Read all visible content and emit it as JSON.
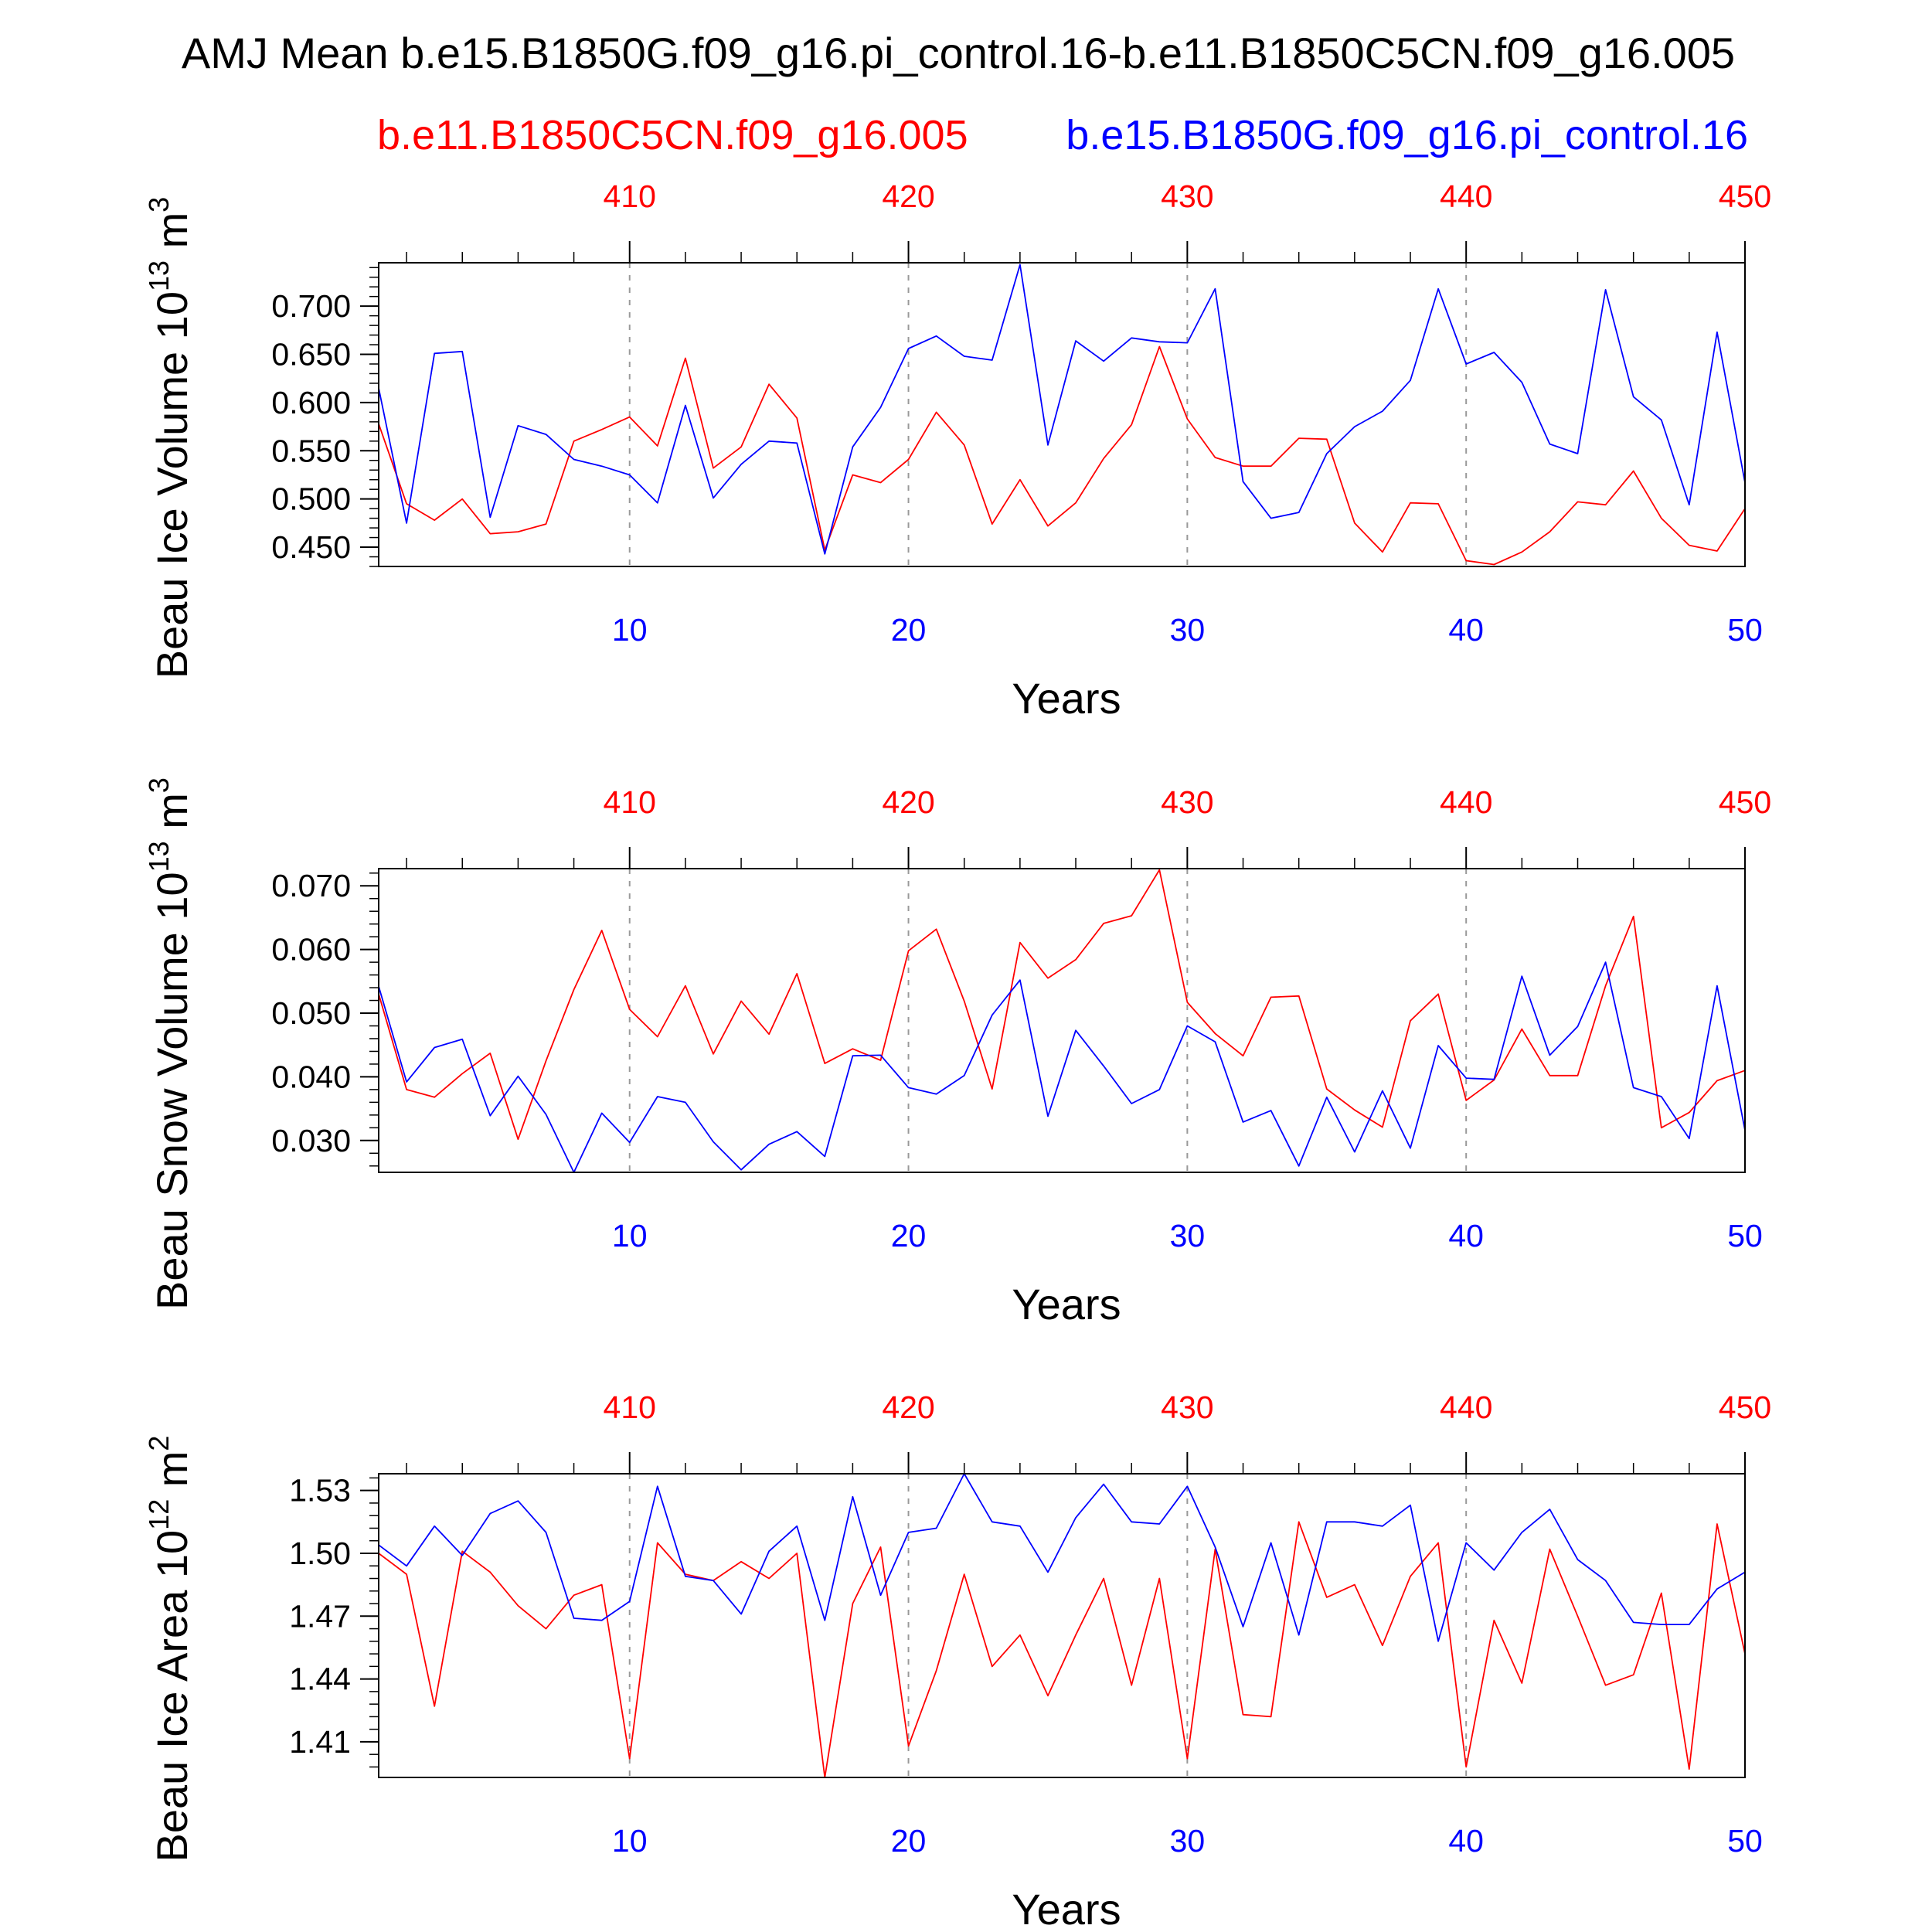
{
  "title": "AMJ Mean b.e15.B1850G.f09_g16.pi_control.16-b.e11.B1850C5CN.f09_g16.005",
  "legend": {
    "case1": {
      "label": "b.e11.B1850C5CN.f09_g16.005",
      "color": "#ff0000"
    },
    "case2": {
      "label": "b.e15.B1850G.f09_g16.pi_control.16",
      "color": "#0000ff"
    }
  },
  "colors": {
    "case1": "#ff0000",
    "case2": "#0000ff",
    "frame": "#000000",
    "gridline": "#999999"
  },
  "chart_data": [
    {
      "type": "line",
      "ylabel": "Beau Ice Volume 10",
      "ylabel_exp": "13",
      "ylabel_unit": " m",
      "ylabel_unit_exp": "3",
      "xlabel": "Years",
      "xlim": [
        1,
        50
      ],
      "ylim": [
        0.43,
        0.745
      ],
      "yticks": [
        0.45,
        0.5,
        0.55,
        0.6,
        0.65,
        0.7
      ],
      "ytick_labels": [
        "0.450",
        "0.500",
        "0.550",
        "0.600",
        "0.650",
        "0.700"
      ],
      "yminor_step": 0.01,
      "bottom_x_ticks": [
        10,
        20,
        30,
        40,
        50
      ],
      "top_x_ticks": [
        410,
        420,
        430,
        440,
        450
      ],
      "grid_x": [
        10,
        20,
        30,
        40
      ],
      "x": [
        1,
        2,
        3,
        4,
        5,
        6,
        7,
        8,
        9,
        10,
        11,
        12,
        13,
        14,
        15,
        16,
        17,
        18,
        19,
        20,
        21,
        22,
        23,
        24,
        25,
        26,
        27,
        28,
        29,
        30,
        31,
        32,
        33,
        34,
        35,
        36,
        37,
        38,
        39,
        40,
        41,
        42,
        43,
        44,
        45,
        46,
        47,
        48,
        49,
        50
      ],
      "series": [
        {
          "name": "b.e11.B1850C5CN.f09_g16.005",
          "color": "#ff0000",
          "values": [
            0.578,
            0.495,
            0.478,
            0.5,
            0.464,
            0.466,
            0.474,
            0.56,
            0.572,
            0.585,
            0.555,
            0.646,
            0.532,
            0.554,
            0.619,
            0.584,
            0.447,
            0.525,
            0.517,
            0.541,
            0.59,
            0.556,
            0.474,
            0.52,
            0.472,
            0.496,
            0.542,
            0.577,
            0.658,
            0.583,
            0.543,
            0.534,
            0.534,
            0.563,
            0.562,
            0.475,
            0.445,
            0.496,
            0.495,
            0.436,
            0.432,
            0.445,
            0.466,
            0.497,
            0.494,
            0.529,
            0.48,
            0.452,
            0.446,
            0.49
          ]
        },
        {
          "name": "b.e15.B1850G.f09_g16.pi_control.16",
          "color": "#0000ff",
          "values": [
            0.615,
            0.475,
            0.651,
            0.653,
            0.481,
            0.576,
            0.567,
            0.541,
            0.534,
            0.525,
            0.496,
            0.597,
            0.501,
            0.536,
            0.56,
            0.558,
            0.443,
            0.554,
            0.595,
            0.656,
            0.669,
            0.648,
            0.644,
            0.743,
            0.556,
            0.664,
            0.643,
            0.667,
            0.663,
            0.662,
            0.718,
            0.518,
            0.48,
            0.486,
            0.547,
            0.575,
            0.591,
            0.623,
            0.718,
            0.64,
            0.652,
            0.621,
            0.557,
            0.547,
            0.717,
            0.606,
            0.582,
            0.494,
            0.673,
            0.517
          ]
        }
      ]
    },
    {
      "type": "line",
      "ylabel": "Beau Snow Volume 10",
      "ylabel_exp": "13",
      "ylabel_unit": " m",
      "ylabel_unit_exp": "3",
      "xlabel": "Years",
      "xlim": [
        1,
        50
      ],
      "ylim": [
        0.025,
        0.0727
      ],
      "yticks": [
        0.03,
        0.04,
        0.05,
        0.06,
        0.07
      ],
      "ytick_labels": [
        "0.030",
        "0.040",
        "0.050",
        "0.060",
        "0.070"
      ],
      "yminor_step": 0.002,
      "bottom_x_ticks": [
        10,
        20,
        30,
        40,
        50
      ],
      "top_x_ticks": [
        410,
        420,
        430,
        440,
        450
      ],
      "grid_x": [
        10,
        20,
        30,
        40
      ],
      "x": [
        1,
        2,
        3,
        4,
        5,
        6,
        7,
        8,
        9,
        10,
        11,
        12,
        13,
        14,
        15,
        16,
        17,
        18,
        19,
        20,
        21,
        22,
        23,
        24,
        25,
        26,
        27,
        28,
        29,
        30,
        31,
        32,
        33,
        34,
        35,
        36,
        37,
        38,
        39,
        40,
        41,
        42,
        43,
        44,
        45,
        46,
        47,
        48,
        49,
        50
      ],
      "series": [
        {
          "name": "b.e11.B1850C5CN.f09_g16.005",
          "color": "#ff0000",
          "values": [
            0.053,
            0.038,
            0.0368,
            0.0405,
            0.0437,
            0.0302,
            0.0425,
            0.0537,
            0.063,
            0.0506,
            0.0463,
            0.0543,
            0.0436,
            0.0519,
            0.0467,
            0.0562,
            0.0421,
            0.0444,
            0.0426,
            0.0598,
            0.0632,
            0.0519,
            0.0381,
            0.0611,
            0.0555,
            0.0584,
            0.0641,
            0.0653,
            0.0725,
            0.0517,
            0.0468,
            0.0433,
            0.0525,
            0.0527,
            0.0381,
            0.0348,
            0.0321,
            0.0488,
            0.053,
            0.0363,
            0.0395,
            0.0475,
            0.0402,
            0.0402,
            0.0543,
            0.0652,
            0.032,
            0.0344,
            0.0394,
            0.041
          ]
        },
        {
          "name": "b.e15.B1850G.f09_g16.pi_control.16",
          "color": "#0000ff",
          "values": [
            0.0542,
            0.0392,
            0.0446,
            0.0459,
            0.0339,
            0.0401,
            0.0341,
            0.025,
            0.0343,
            0.0297,
            0.0369,
            0.036,
            0.0298,
            0.0254,
            0.0294,
            0.0314,
            0.0275,
            0.0433,
            0.0434,
            0.0383,
            0.0373,
            0.0402,
            0.0497,
            0.0552,
            0.0338,
            0.0473,
            0.0417,
            0.0358,
            0.038,
            0.048,
            0.0455,
            0.0329,
            0.0347,
            0.026,
            0.0368,
            0.0282,
            0.0378,
            0.0288,
            0.0449,
            0.0398,
            0.0396,
            0.0558,
            0.0434,
            0.0479,
            0.058,
            0.0383,
            0.0369,
            0.0303,
            0.0543,
            0.0316
          ]
        }
      ]
    },
    {
      "type": "line",
      "ylabel": "Beau Ice Area 10",
      "ylabel_exp": "12",
      "ylabel_unit": " m",
      "ylabel_unit_exp": "2",
      "xlabel": "Years",
      "xlim": [
        1,
        50
      ],
      "ylim": [
        1.393,
        1.538
      ],
      "yticks": [
        1.41,
        1.44,
        1.47,
        1.5,
        1.53
      ],
      "ytick_labels": [
        "1.41",
        "1.44",
        "1.47",
        "1.50",
        "1.53"
      ],
      "yminor_step": 0.006,
      "bottom_x_ticks": [
        10,
        20,
        30,
        40,
        50
      ],
      "top_x_ticks": [
        410,
        420,
        430,
        440,
        450
      ],
      "grid_x": [
        10,
        20,
        30,
        40
      ],
      "x": [
        1,
        2,
        3,
        4,
        5,
        6,
        7,
        8,
        9,
        10,
        11,
        12,
        13,
        14,
        15,
        16,
        17,
        18,
        19,
        20,
        21,
        22,
        23,
        24,
        25,
        26,
        27,
        28,
        29,
        30,
        31,
        32,
        33,
        34,
        35,
        36,
        37,
        38,
        39,
        40,
        41,
        42,
        43,
        44,
        45,
        46,
        47,
        48,
        49,
        50
      ],
      "series": [
        {
          "name": "b.e11.B1850C5CN.f09_g16.005",
          "color": "#ff0000",
          "values": [
            1.5,
            1.49,
            1.427,
            1.501,
            1.491,
            1.475,
            1.464,
            1.48,
            1.485,
            1.402,
            1.505,
            1.49,
            1.487,
            1.496,
            1.488,
            1.5,
            1.393,
            1.476,
            1.503,
            1.408,
            1.444,
            1.49,
            1.446,
            1.461,
            1.432,
            1.461,
            1.488,
            1.437,
            1.488,
            1.402,
            1.502,
            1.423,
            1.422,
            1.515,
            1.479,
            1.485,
            1.456,
            1.489,
            1.505,
            1.398,
            1.468,
            1.438,
            1.502,
            1.47,
            1.437,
            1.442,
            1.481,
            1.397,
            1.514,
            1.452
          ]
        },
        {
          "name": "b.e15.B1850G.f09_g16.pi_control.16",
          "color": "#0000ff",
          "values": [
            1.504,
            1.494,
            1.513,
            1.499,
            1.519,
            1.525,
            1.51,
            1.469,
            1.468,
            1.477,
            1.532,
            1.489,
            1.487,
            1.471,
            1.501,
            1.513,
            1.468,
            1.527,
            1.48,
            1.51,
            1.512,
            1.538,
            1.515,
            1.513,
            1.491,
            1.517,
            1.533,
            1.515,
            1.514,
            1.532,
            1.503,
            1.465,
            1.505,
            1.461,
            1.515,
            1.515,
            1.513,
            1.523,
            1.458,
            1.505,
            1.492,
            1.51,
            1.521,
            1.497,
            1.487,
            1.467,
            1.466,
            1.466,
            1.483,
            1.491
          ]
        }
      ]
    }
  ]
}
